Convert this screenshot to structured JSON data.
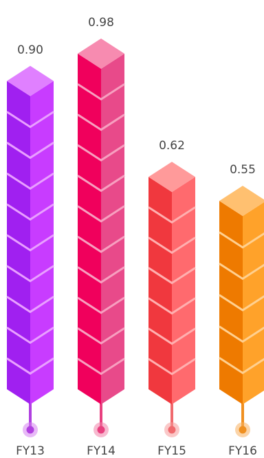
{
  "chart_data": {
    "type": "bar",
    "style": "isometric-stacked-cubes",
    "categories": [
      "FY13",
      "FY14",
      "FY15",
      "FY16"
    ],
    "values": [
      0.9,
      0.98,
      0.62,
      0.55
    ],
    "value_labels": [
      "0.90",
      "0.98",
      "0.62",
      "0.55"
    ],
    "title": "",
    "xlabel": "",
    "ylabel": "",
    "ylim": [
      0,
      1
    ],
    "grid": false,
    "legend": "none",
    "colors": [
      {
        "top": "#E080FF",
        "left": "#A020F0",
        "right": "#C83CFF",
        "seam": "#E9A0FF",
        "stem": "#B040E0",
        "dot": "#D680F0"
      },
      {
        "top": "#F78BB0",
        "left": "#F0005C",
        "right": "#E84A8A",
        "seam": "#F7A0C0",
        "stem": "#E8407F",
        "dot": "#F080A8"
      },
      {
        "top": "#FF9A9A",
        "left": "#F0383E",
        "right": "#FF6A6E",
        "seam": "#FFB0B0",
        "stem": "#F06A6E",
        "dot": "#F59A9A"
      },
      {
        "top": "#FFC070",
        "left": "#EE7A00",
        "right": "#FFA22A",
        "seam": "#FFD090",
        "stem": "#F09020",
        "dot": "#F8B060"
      }
    ]
  }
}
